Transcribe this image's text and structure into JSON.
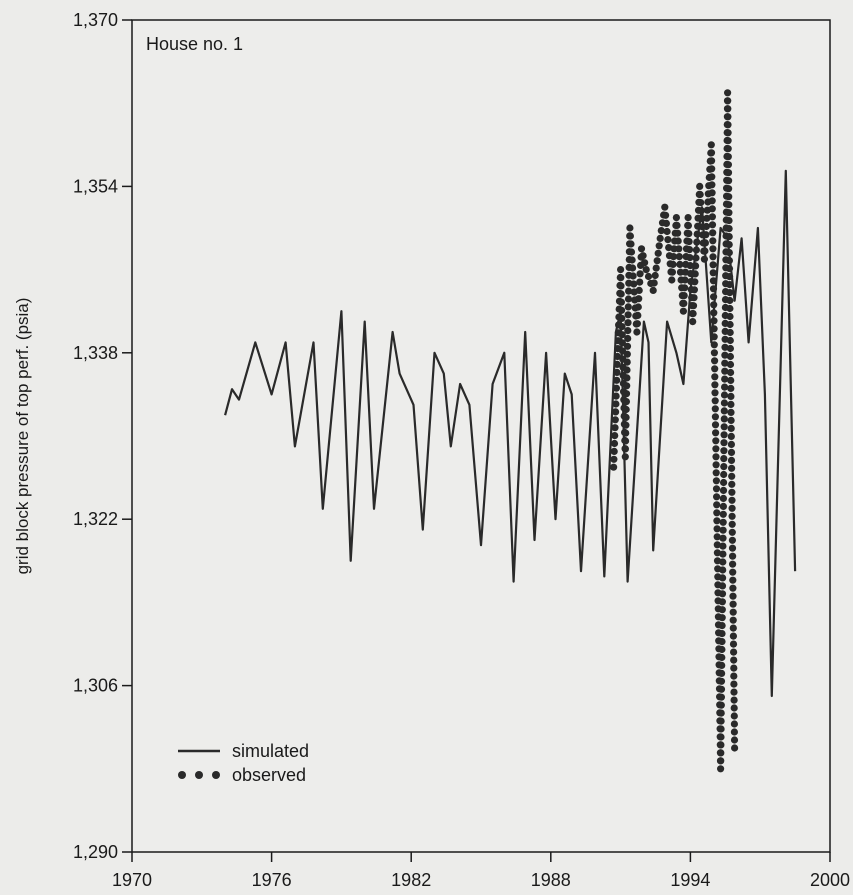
{
  "chart_data": {
    "type": "line",
    "title": "House no. 1",
    "xlabel": "",
    "ylabel": "grid block pressure of top perf. (psia)",
    "xlim": [
      1970,
      2000
    ],
    "ylim": [
      1290,
      1370
    ],
    "x_ticks": [
      1970,
      1976,
      1982,
      1988,
      1994,
      2000
    ],
    "y_ticks": [
      1290,
      1306,
      1322,
      1338,
      1354,
      1370
    ],
    "x_tick_labels": [
      "1970",
      "1976",
      "1982",
      "1988",
      "1994",
      "2000"
    ],
    "y_tick_labels": [
      "1,290",
      "1,306",
      "1,322",
      "1,338",
      "1,354",
      "1,370"
    ],
    "grid": false,
    "legend_position": "bottom-left",
    "series": [
      {
        "name": "simulated",
        "style": "solid-line",
        "color": "#2a2a2a",
        "points": [
          [
            1974.0,
            1332.0
          ],
          [
            1974.3,
            1334.5
          ],
          [
            1974.6,
            1333.5
          ],
          [
            1975.3,
            1339.0
          ],
          [
            1976.0,
            1334.0
          ],
          [
            1976.6,
            1339.0
          ],
          [
            1977.0,
            1329.0
          ],
          [
            1977.8,
            1339.0
          ],
          [
            1978.2,
            1323.0
          ],
          [
            1979.0,
            1342.0
          ],
          [
            1979.4,
            1318.0
          ],
          [
            1980.0,
            1341.0
          ],
          [
            1980.4,
            1323.0
          ],
          [
            1981.2,
            1340.0
          ],
          [
            1981.5,
            1336.0
          ],
          [
            1982.1,
            1333.0
          ],
          [
            1982.5,
            1321.0
          ],
          [
            1983.0,
            1338.0
          ],
          [
            1983.4,
            1336.0
          ],
          [
            1983.7,
            1329.0
          ],
          [
            1984.1,
            1335.0
          ],
          [
            1984.5,
            1333.0
          ],
          [
            1985.0,
            1319.5
          ],
          [
            1985.5,
            1335.0
          ],
          [
            1986.0,
            1338.0
          ],
          [
            1986.4,
            1316.0
          ],
          [
            1986.9,
            1340.0
          ],
          [
            1987.3,
            1320.0
          ],
          [
            1987.8,
            1338.0
          ],
          [
            1988.2,
            1322.0
          ],
          [
            1988.6,
            1336.0
          ],
          [
            1988.9,
            1334.0
          ],
          [
            1989.3,
            1317.0
          ],
          [
            1989.9,
            1338.0
          ],
          [
            1990.3,
            1316.5
          ],
          [
            1990.8,
            1340.0
          ],
          [
            1991.0,
            1342.0
          ],
          [
            1991.3,
            1316.0
          ],
          [
            1992.0,
            1341.0
          ],
          [
            1992.2,
            1339.0
          ],
          [
            1992.4,
            1319.0
          ],
          [
            1993.0,
            1341.0
          ],
          [
            1993.4,
            1338.0
          ],
          [
            1993.7,
            1335.0
          ],
          [
            1994.0,
            1344.0
          ],
          [
            1994.5,
            1352.0
          ],
          [
            1994.9,
            1339.0
          ],
          [
            1995.3,
            1350.0
          ],
          [
            1995.6,
            1349.0
          ],
          [
            1995.9,
            1343.0
          ],
          [
            1996.2,
            1349.0
          ],
          [
            1996.5,
            1339.0
          ],
          [
            1996.9,
            1350.0
          ],
          [
            1997.2,
            1334.0
          ],
          [
            1997.5,
            1305.0
          ],
          [
            1998.1,
            1355.5
          ],
          [
            1998.5,
            1317.0
          ]
        ]
      },
      {
        "name": "observed",
        "style": "dots",
        "color": "#2a2a2a",
        "points": [
          [
            1990.7,
            1327.0
          ],
          [
            1991.0,
            1346.0
          ],
          [
            1991.2,
            1328.0
          ],
          [
            1991.4,
            1350.0
          ],
          [
            1991.7,
            1340.0
          ],
          [
            1991.9,
            1348.0
          ],
          [
            1992.1,
            1346.0
          ],
          [
            1992.4,
            1344.0
          ],
          [
            1992.7,
            1349.0
          ],
          [
            1992.9,
            1352.0
          ],
          [
            1993.2,
            1345.0
          ],
          [
            1993.4,
            1351.0
          ],
          [
            1993.7,
            1342.0
          ],
          [
            1993.9,
            1351.0
          ],
          [
            1994.1,
            1341.0
          ],
          [
            1994.4,
            1354.0
          ],
          [
            1994.6,
            1347.0
          ],
          [
            1994.9,
            1358.0
          ],
          [
            1995.3,
            1298.0
          ],
          [
            1995.6,
            1363.0
          ],
          [
            1995.9,
            1300.0
          ]
        ]
      }
    ],
    "legend": [
      {
        "label": "simulated",
        "marker": "line"
      },
      {
        "label": "observed",
        "marker": "dots"
      }
    ]
  }
}
